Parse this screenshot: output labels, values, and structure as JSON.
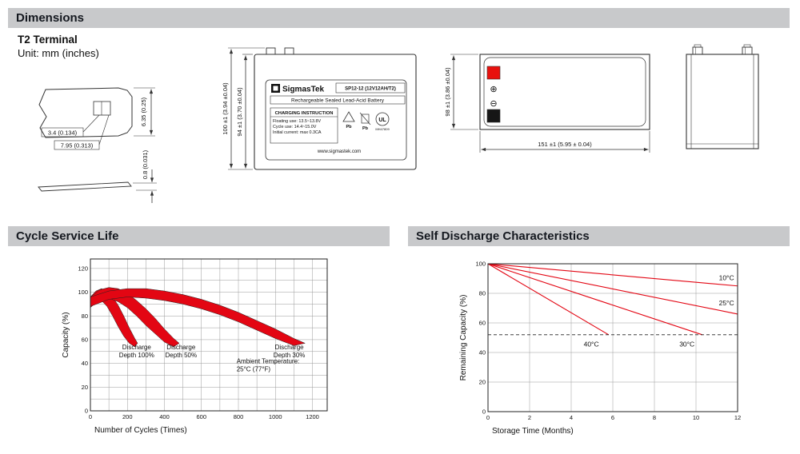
{
  "sections": {
    "dimensions": "Dimensions",
    "cycle": "Cycle Service Life",
    "self_discharge": "Self Discharge Characteristics"
  },
  "dimensions_block": {
    "terminal_type": "T2 Terminal",
    "unit_note": "Unit: mm (inches)",
    "terminal": {
      "height": "6.35 (0.25)",
      "slot_width": "3.4 (0.134)",
      "tab_width": "7.95 (0.313)",
      "thickness": "0.8 (0.031)"
    },
    "front_view": {
      "height_total": "100 ±1 (3.94 ±0.04)",
      "height_body": "94 ±1 (3.70 ±0.04)",
      "label": {
        "brand": "SigmasTek",
        "model": "SP12-12 (12V12AH/T2)",
        "type_line": "Rechargeable Sealed Lead-Acid Battery",
        "charging_title": "CHARGING INSTRUCTION",
        "charging_line1": "Floating use: 13.5~13.8V",
        "charging_line2": "Cycle use: 14.4~15.0V",
        "charging_line3": "Initial current: max 0.3CA",
        "pb1": "Pb",
        "pb2": "Pb",
        "ul_text": "UL",
        "ul_code": "MH47809",
        "website": "www.sigmastek.com"
      }
    },
    "top_view": {
      "height": "98 ±1 (3.86 ±0.04)",
      "width": "151 ±1 (5.95 ± 0.04)",
      "plus_symbol": "⊕",
      "minus_symbol": "⊖"
    }
  },
  "chart_data": [
    {
      "name": "cycle-service-life",
      "type": "area",
      "title": "Cycle Service Life",
      "xlabel": "Number of Cycles (Times)",
      "ylabel": "Capacity (%)",
      "xlim": [
        0,
        1280
      ],
      "ylim": [
        0,
        128
      ],
      "x_ticks": [
        0,
        200,
        400,
        600,
        800,
        1000,
        1200
      ],
      "y_ticks": [
        0,
        20,
        40,
        60,
        80,
        100,
        120
      ],
      "x_grid_step": 100,
      "y_grid_step": 10,
      "grid": true,
      "series_color": "#e30613",
      "bands": [
        {
          "name": "discharge-depth-100",
          "upper": [
            [
              0,
              96
            ],
            [
              30,
              101
            ],
            [
              60,
              103
            ],
            [
              90,
              101
            ],
            [
              120,
              96
            ],
            [
              150,
              89
            ],
            [
              180,
              80
            ],
            [
              210,
              70
            ],
            [
              240,
              61
            ],
            [
              255,
              57
            ]
          ],
          "lower": [
            [
              0,
              87
            ],
            [
              30,
              93
            ],
            [
              60,
              93
            ],
            [
              90,
              88
            ],
            [
              120,
              80
            ],
            [
              150,
              71
            ],
            [
              180,
              63
            ],
            [
              210,
              57
            ],
            [
              240,
              54
            ],
            [
              255,
              57
            ]
          ]
        },
        {
          "name": "discharge-depth-50",
          "upper": [
            [
              0,
              96
            ],
            [
              50,
              102
            ],
            [
              100,
              104
            ],
            [
              150,
              103
            ],
            [
              200,
              99
            ],
            [
              250,
              93
            ],
            [
              300,
              86
            ],
            [
              350,
              78
            ],
            [
              400,
              69
            ],
            [
              450,
              61
            ],
            [
              480,
              57
            ]
          ],
          "lower": [
            [
              0,
              87
            ],
            [
              50,
              94
            ],
            [
              100,
              95
            ],
            [
              150,
              92
            ],
            [
              200,
              87
            ],
            [
              250,
              80
            ],
            [
              300,
              72
            ],
            [
              350,
              65
            ],
            [
              400,
              58
            ],
            [
              450,
              54
            ],
            [
              480,
              57
            ]
          ]
        },
        {
          "name": "discharge-depth-30",
          "upper": [
            [
              0,
              96
            ],
            [
              100,
              101
            ],
            [
              200,
              103
            ],
            [
              300,
              103
            ],
            [
              400,
              101
            ],
            [
              500,
              98
            ],
            [
              600,
              94
            ],
            [
              700,
              89
            ],
            [
              800,
              83
            ],
            [
              900,
              76
            ],
            [
              1000,
              69
            ],
            [
              1100,
              61
            ],
            [
              1160,
              57
            ]
          ],
          "lower": [
            [
              0,
              88
            ],
            [
              100,
              94
            ],
            [
              200,
              96
            ],
            [
              300,
              95
            ],
            [
              400,
              93
            ],
            [
              500,
              90
            ],
            [
              600,
              86
            ],
            [
              700,
              81
            ],
            [
              800,
              75
            ],
            [
              900,
              68
            ],
            [
              1000,
              61
            ],
            [
              1100,
              55
            ],
            [
              1160,
              57
            ]
          ]
        }
      ],
      "annotations": [
        {
          "lines": [
            "Discharge",
            "Depth 100%"
          ],
          "x": 250,
          "y": 52,
          "anchor": "middle"
        },
        {
          "lines": [
            "Discharge",
            "Depth 50%"
          ],
          "x": 490,
          "y": 52,
          "anchor": "middle"
        },
        {
          "lines": [
            "Discharge",
            "Depth 30%"
          ],
          "x": 1075,
          "y": 52,
          "anchor": "middle"
        },
        {
          "lines": [
            "Ambient Temperature:",
            "25°C (77°F)"
          ],
          "x": 790,
          "y": 40,
          "anchor": "start"
        }
      ]
    },
    {
      "name": "self-discharge",
      "type": "line",
      "title": "Self Discharge Characteristics",
      "xlabel": "Storage Time (Months)",
      "ylabel": "Remaining Capacity (%)",
      "xlim": [
        0,
        12
      ],
      "ylim": [
        0,
        100
      ],
      "x_ticks": [
        0,
        2,
        4,
        6,
        8,
        10,
        12
      ],
      "y_ticks": [
        0,
        20,
        40,
        60,
        80,
        100
      ],
      "x_grid_step": 2,
      "y_grid_step": 20,
      "grid": true,
      "series_color": "#e30613",
      "lines": [
        {
          "name": "10°C",
          "points": [
            [
              0,
              100
            ],
            [
              12,
              85
            ]
          ],
          "label_x": 11.1,
          "label_y": 89
        },
        {
          "name": "25°C",
          "points": [
            [
              0,
              100
            ],
            [
              12,
              66
            ]
          ],
          "label_x": 11.1,
          "label_y": 72
        },
        {
          "name": "30°C",
          "points": [
            [
              0,
              100
            ],
            [
              10.3,
              52
            ]
          ],
          "label_x": 9.2,
          "label_y": 44
        },
        {
          "name": "40°C",
          "points": [
            [
              0,
              100
            ],
            [
              5.8,
              52
            ]
          ],
          "label_x": 4.6,
          "label_y": 44
        }
      ],
      "dashed_line_y": 52
    }
  ]
}
